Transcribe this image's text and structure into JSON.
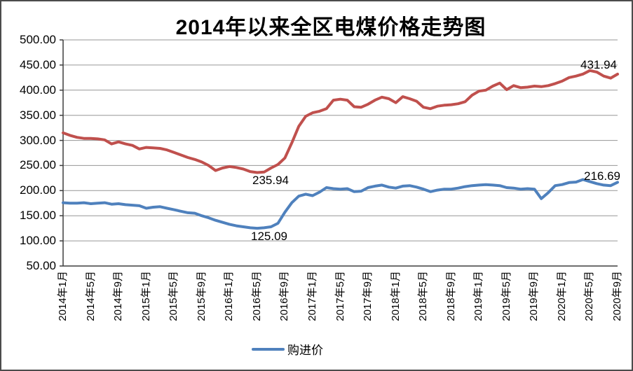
{
  "chart": {
    "title": "2014年以来全区电煤价格走势图",
    "legend_label": "购进价",
    "annotations": {
      "red_min": "235.94",
      "blue_min": "125.09",
      "red_end": "431.94",
      "blue_end": "216.69"
    }
  },
  "chart_data": {
    "type": "line",
    "title": "2014年以来全区电煤价格走势图",
    "xlabel": "",
    "ylabel": "",
    "ylim": [
      50,
      500
    ],
    "grid": "horizontal",
    "legend_position": "bottom",
    "x_frequency": "monthly",
    "x_start_label": "2014年1月",
    "x_end_label": "2020年9月",
    "x_tick_every_n_months": 4,
    "y_ticks": [
      500,
      450,
      400,
      350,
      300,
      250,
      200,
      150,
      100,
      50
    ],
    "y_tick_labels": [
      "500.00",
      "450.00",
      "400.00",
      "350.00",
      "300.00",
      "250.00",
      "200.00",
      "150.00",
      "100.00",
      "50.00"
    ],
    "x_tick_labels": [
      "2014年1月",
      "2014年5月",
      "2014年9月",
      "2015年1月",
      "2015年5月",
      "2015年9月",
      "2016年1月",
      "2016年5月",
      "2016年9月",
      "2017年1月",
      "2017年5月",
      "2017年9月",
      "2018年1月",
      "2018年5月",
      "2018年9月",
      "2019年1月",
      "2019年5月",
      "2019年9月",
      "2020年1月",
      "2020年5月",
      "2020年9月"
    ],
    "series": [
      {
        "name": "",
        "color": "#C0504D",
        "values": [
          315,
          310,
          306,
          304,
          304,
          303,
          301,
          293,
          297,
          293,
          290,
          283,
          286,
          285,
          284,
          281,
          276,
          271,
          266,
          262,
          257,
          250,
          240,
          245,
          248,
          246,
          243,
          238,
          235.94,
          237,
          245,
          252,
          265,
          295,
          328,
          348,
          355,
          358,
          363,
          380,
          382,
          380,
          367,
          366,
          372,
          380,
          386,
          383,
          375,
          387,
          383,
          378,
          366,
          363,
          368,
          370,
          371,
          373,
          377,
          390,
          398,
          400,
          408,
          414,
          401,
          409,
          405,
          406,
          408,
          407,
          409,
          413,
          418,
          425,
          428,
          432,
          439,
          436,
          428,
          424,
          431.94
        ]
      },
      {
        "name": "购进价",
        "color": "#4F81BD",
        "values": [
          176,
          175,
          175,
          176,
          174,
          175,
          176,
          173,
          174,
          172,
          171,
          170,
          165,
          167,
          168,
          165,
          162,
          159,
          156,
          155,
          150,
          146,
          141,
          137,
          133,
          130,
          128,
          126,
          125.09,
          126,
          128,
          135,
          157,
          176,
          189,
          193,
          190,
          197,
          206,
          204,
          203,
          204,
          198,
          199,
          206,
          209,
          211,
          207,
          205,
          209,
          210,
          207,
          203,
          198,
          201,
          203,
          203,
          205,
          208,
          210,
          211,
          212,
          211,
          210,
          206,
          205,
          203,
          204,
          203,
          184,
          196,
          210,
          212,
          216,
          217,
          222,
          218,
          214,
          211,
          210,
          216.69
        ]
      }
    ],
    "labeled_points": [
      {
        "series_color": "#C0504D",
        "x": "2016年5月",
        "value": 235.94
      },
      {
        "series_color": "#C0504D",
        "x": "2020年9月",
        "value": 431.94
      },
      {
        "series_color": "#4F81BD",
        "x": "2016年5月",
        "value": 125.09
      },
      {
        "series_color": "#4F81BD",
        "x": "2020年9月",
        "value": 216.69
      }
    ]
  }
}
